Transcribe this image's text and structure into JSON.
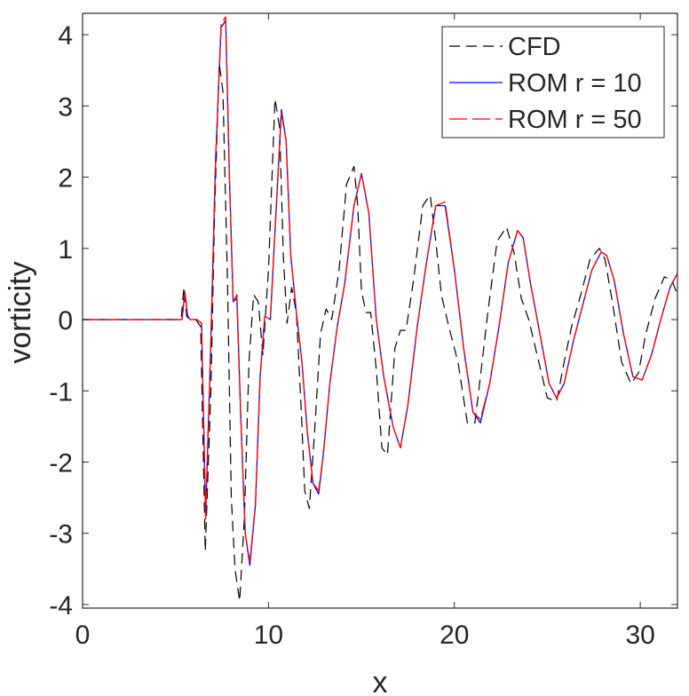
{
  "chart_data": {
    "type": "line",
    "title": "",
    "xlabel": "x",
    "ylabel": "vorticity",
    "xlim": [
      0,
      32
    ],
    "ylim": [
      -4.05,
      4.3
    ],
    "xticks": [
      0,
      10,
      20,
      30
    ],
    "yticks": [
      -4,
      -3,
      -2,
      -1,
      0,
      1,
      2,
      3,
      4
    ],
    "grid": false,
    "legend_position": "top-right",
    "series": [
      {
        "name": "CFD",
        "color": "#000000",
        "style": "dashed",
        "x": [
          0,
          5.3,
          5.45,
          5.6,
          5.75,
          6.1,
          6.35,
          6.6,
          6.9,
          7.1,
          7.35,
          7.55,
          7.8,
          8.0,
          8.2,
          8.45,
          8.7,
          8.95,
          9.2,
          9.45,
          9.7,
          10.0,
          10.35,
          10.6,
          10.8,
          11.0,
          11.25,
          11.5,
          11.75,
          11.95,
          12.2,
          12.5,
          12.8,
          13.1,
          13.4,
          13.8,
          14.2,
          14.6,
          14.8,
          15.0,
          15.25,
          15.5,
          15.8,
          16.1,
          16.4,
          16.8,
          17.1,
          17.4,
          17.8,
          18.3,
          18.7,
          19.0,
          19.3,
          19.7,
          20.2,
          20.7,
          21.1,
          21.4,
          21.8,
          22.3,
          22.8,
          23.2,
          23.6,
          24.0,
          24.5,
          25.0,
          25.5,
          25.9,
          26.3,
          26.8,
          27.3,
          27.8,
          28.1,
          28.5,
          29.0,
          29.5,
          29.9,
          30.3,
          30.8,
          31.3,
          31.7,
          32.0
        ],
        "y": [
          0,
          0,
          0.45,
          0.05,
          0,
          0,
          -0.1,
          -3.25,
          -1.0,
          1.5,
          3.6,
          3.2,
          0.5,
          -2.5,
          -3.5,
          -3.95,
          -2.8,
          -0.6,
          0.35,
          0.25,
          -0.5,
          0.7,
          3.1,
          2.7,
          0.9,
          -0.05,
          0.45,
          0.1,
          -1.2,
          -2.4,
          -2.65,
          -1.5,
          -0.2,
          0.15,
          0.0,
          0.7,
          1.9,
          2.15,
          1.6,
          0.4,
          0.1,
          0.1,
          -0.7,
          -1.8,
          -1.9,
          -0.4,
          -0.15,
          -0.15,
          0.55,
          1.6,
          1.75,
          1.1,
          0.35,
          -0.1,
          -0.6,
          -1.45,
          -1.45,
          -0.8,
          0.1,
          1.1,
          1.3,
          0.95,
          0.3,
          0.0,
          -0.55,
          -1.1,
          -1.15,
          -0.6,
          -0.1,
          0.35,
          0.85,
          1.0,
          0.85,
          0.25,
          -0.6,
          -0.9,
          -0.75,
          -0.2,
          0.3,
          0.6,
          0.55,
          0.35
        ]
      },
      {
        "name": "ROM r = 10",
        "color": "#0000ff",
        "style": "solid",
        "x": [
          0,
          5.35,
          5.5,
          5.65,
          5.8,
          6.15,
          6.4,
          6.62,
          6.9,
          7.15,
          7.45,
          7.7,
          7.9,
          8.1,
          8.3,
          8.5,
          8.75,
          9.0,
          9.3,
          9.55,
          9.8,
          10.1,
          10.4,
          10.7,
          10.95,
          11.2,
          11.5,
          11.8,
          12.1,
          12.4,
          12.7,
          12.95,
          13.3,
          13.7,
          14.1,
          14.6,
          15.0,
          15.4,
          15.8,
          16.2,
          16.7,
          17.1,
          17.5,
          18.0,
          18.5,
          19.0,
          19.5,
          20.0,
          20.5,
          21.0,
          21.4,
          21.9,
          22.4,
          22.9,
          23.4,
          23.7,
          24.1,
          24.6,
          25.1,
          25.5,
          25.9,
          26.4,
          26.9,
          27.4,
          27.9,
          28.2,
          28.6,
          29.1,
          29.6,
          30.1,
          30.6,
          31.1,
          31.6,
          32.0
        ],
        "y": [
          0,
          0,
          0.38,
          0.05,
          0,
          0,
          -0.05,
          -2.75,
          -0.3,
          2.2,
          4.1,
          4.2,
          2.0,
          0.25,
          0.3,
          -1.3,
          -3.0,
          -3.45,
          -2.6,
          -0.8,
          0.05,
          0.0,
          1.5,
          2.95,
          2.5,
          0.9,
          0.1,
          -0.6,
          -1.6,
          -2.3,
          -2.45,
          -1.9,
          -0.9,
          -0.1,
          0.5,
          1.6,
          2.05,
          1.5,
          0.0,
          -0.8,
          -1.5,
          -1.8,
          -1.2,
          -0.1,
          0.8,
          1.6,
          1.6,
          0.7,
          -0.4,
          -1.3,
          -1.45,
          -0.9,
          -0.1,
          0.8,
          1.25,
          1.15,
          0.5,
          -0.2,
          -0.9,
          -1.1,
          -0.9,
          -0.3,
          0.2,
          0.7,
          0.95,
          0.9,
          0.55,
          -0.2,
          -0.8,
          -0.85,
          -0.5,
          0.0,
          0.45,
          0.65
        ]
      },
      {
        "name": "ROM r = 50",
        "color": "#ff0000",
        "style": "dashed",
        "x": [
          0,
          5.35,
          5.5,
          5.65,
          5.8,
          6.15,
          6.4,
          6.62,
          6.9,
          7.15,
          7.45,
          7.7,
          7.9,
          8.1,
          8.3,
          8.5,
          8.75,
          9.0,
          9.3,
          9.55,
          9.8,
          10.1,
          10.4,
          10.7,
          10.95,
          11.2,
          11.5,
          11.8,
          12.1,
          12.4,
          12.7,
          12.95,
          13.3,
          13.7,
          14.1,
          14.6,
          15.0,
          15.4,
          15.8,
          16.2,
          16.7,
          17.1,
          17.5,
          18.0,
          18.5,
          19.0,
          19.5,
          20.0,
          20.5,
          21.0,
          21.4,
          21.9,
          22.4,
          22.9,
          23.4,
          23.7,
          24.1,
          24.6,
          25.1,
          25.5,
          25.9,
          26.4,
          26.9,
          27.4,
          27.9,
          28.2,
          28.6,
          29.1,
          29.6,
          30.1,
          30.6,
          31.1,
          31.6,
          32.0
        ],
        "y": [
          0,
          0,
          0.4,
          0.05,
          0,
          0,
          -0.05,
          -2.8,
          -0.3,
          2.2,
          4.15,
          4.25,
          2.0,
          0.25,
          0.35,
          -1.3,
          -3.0,
          -3.4,
          -2.6,
          -0.8,
          0.05,
          0.0,
          1.5,
          2.9,
          2.5,
          0.9,
          0.1,
          -0.6,
          -1.6,
          -2.3,
          -2.4,
          -1.9,
          -0.9,
          -0.1,
          0.5,
          1.6,
          2.05,
          1.5,
          0.0,
          -0.8,
          -1.5,
          -1.8,
          -1.2,
          -0.1,
          0.8,
          1.6,
          1.65,
          0.7,
          -0.4,
          -1.3,
          -1.4,
          -0.9,
          -0.1,
          0.8,
          1.25,
          1.15,
          0.5,
          -0.2,
          -0.9,
          -1.1,
          -0.9,
          -0.3,
          0.2,
          0.7,
          0.95,
          0.9,
          0.55,
          -0.2,
          -0.8,
          -0.85,
          -0.5,
          0.0,
          0.45,
          0.65
        ]
      }
    ]
  }
}
